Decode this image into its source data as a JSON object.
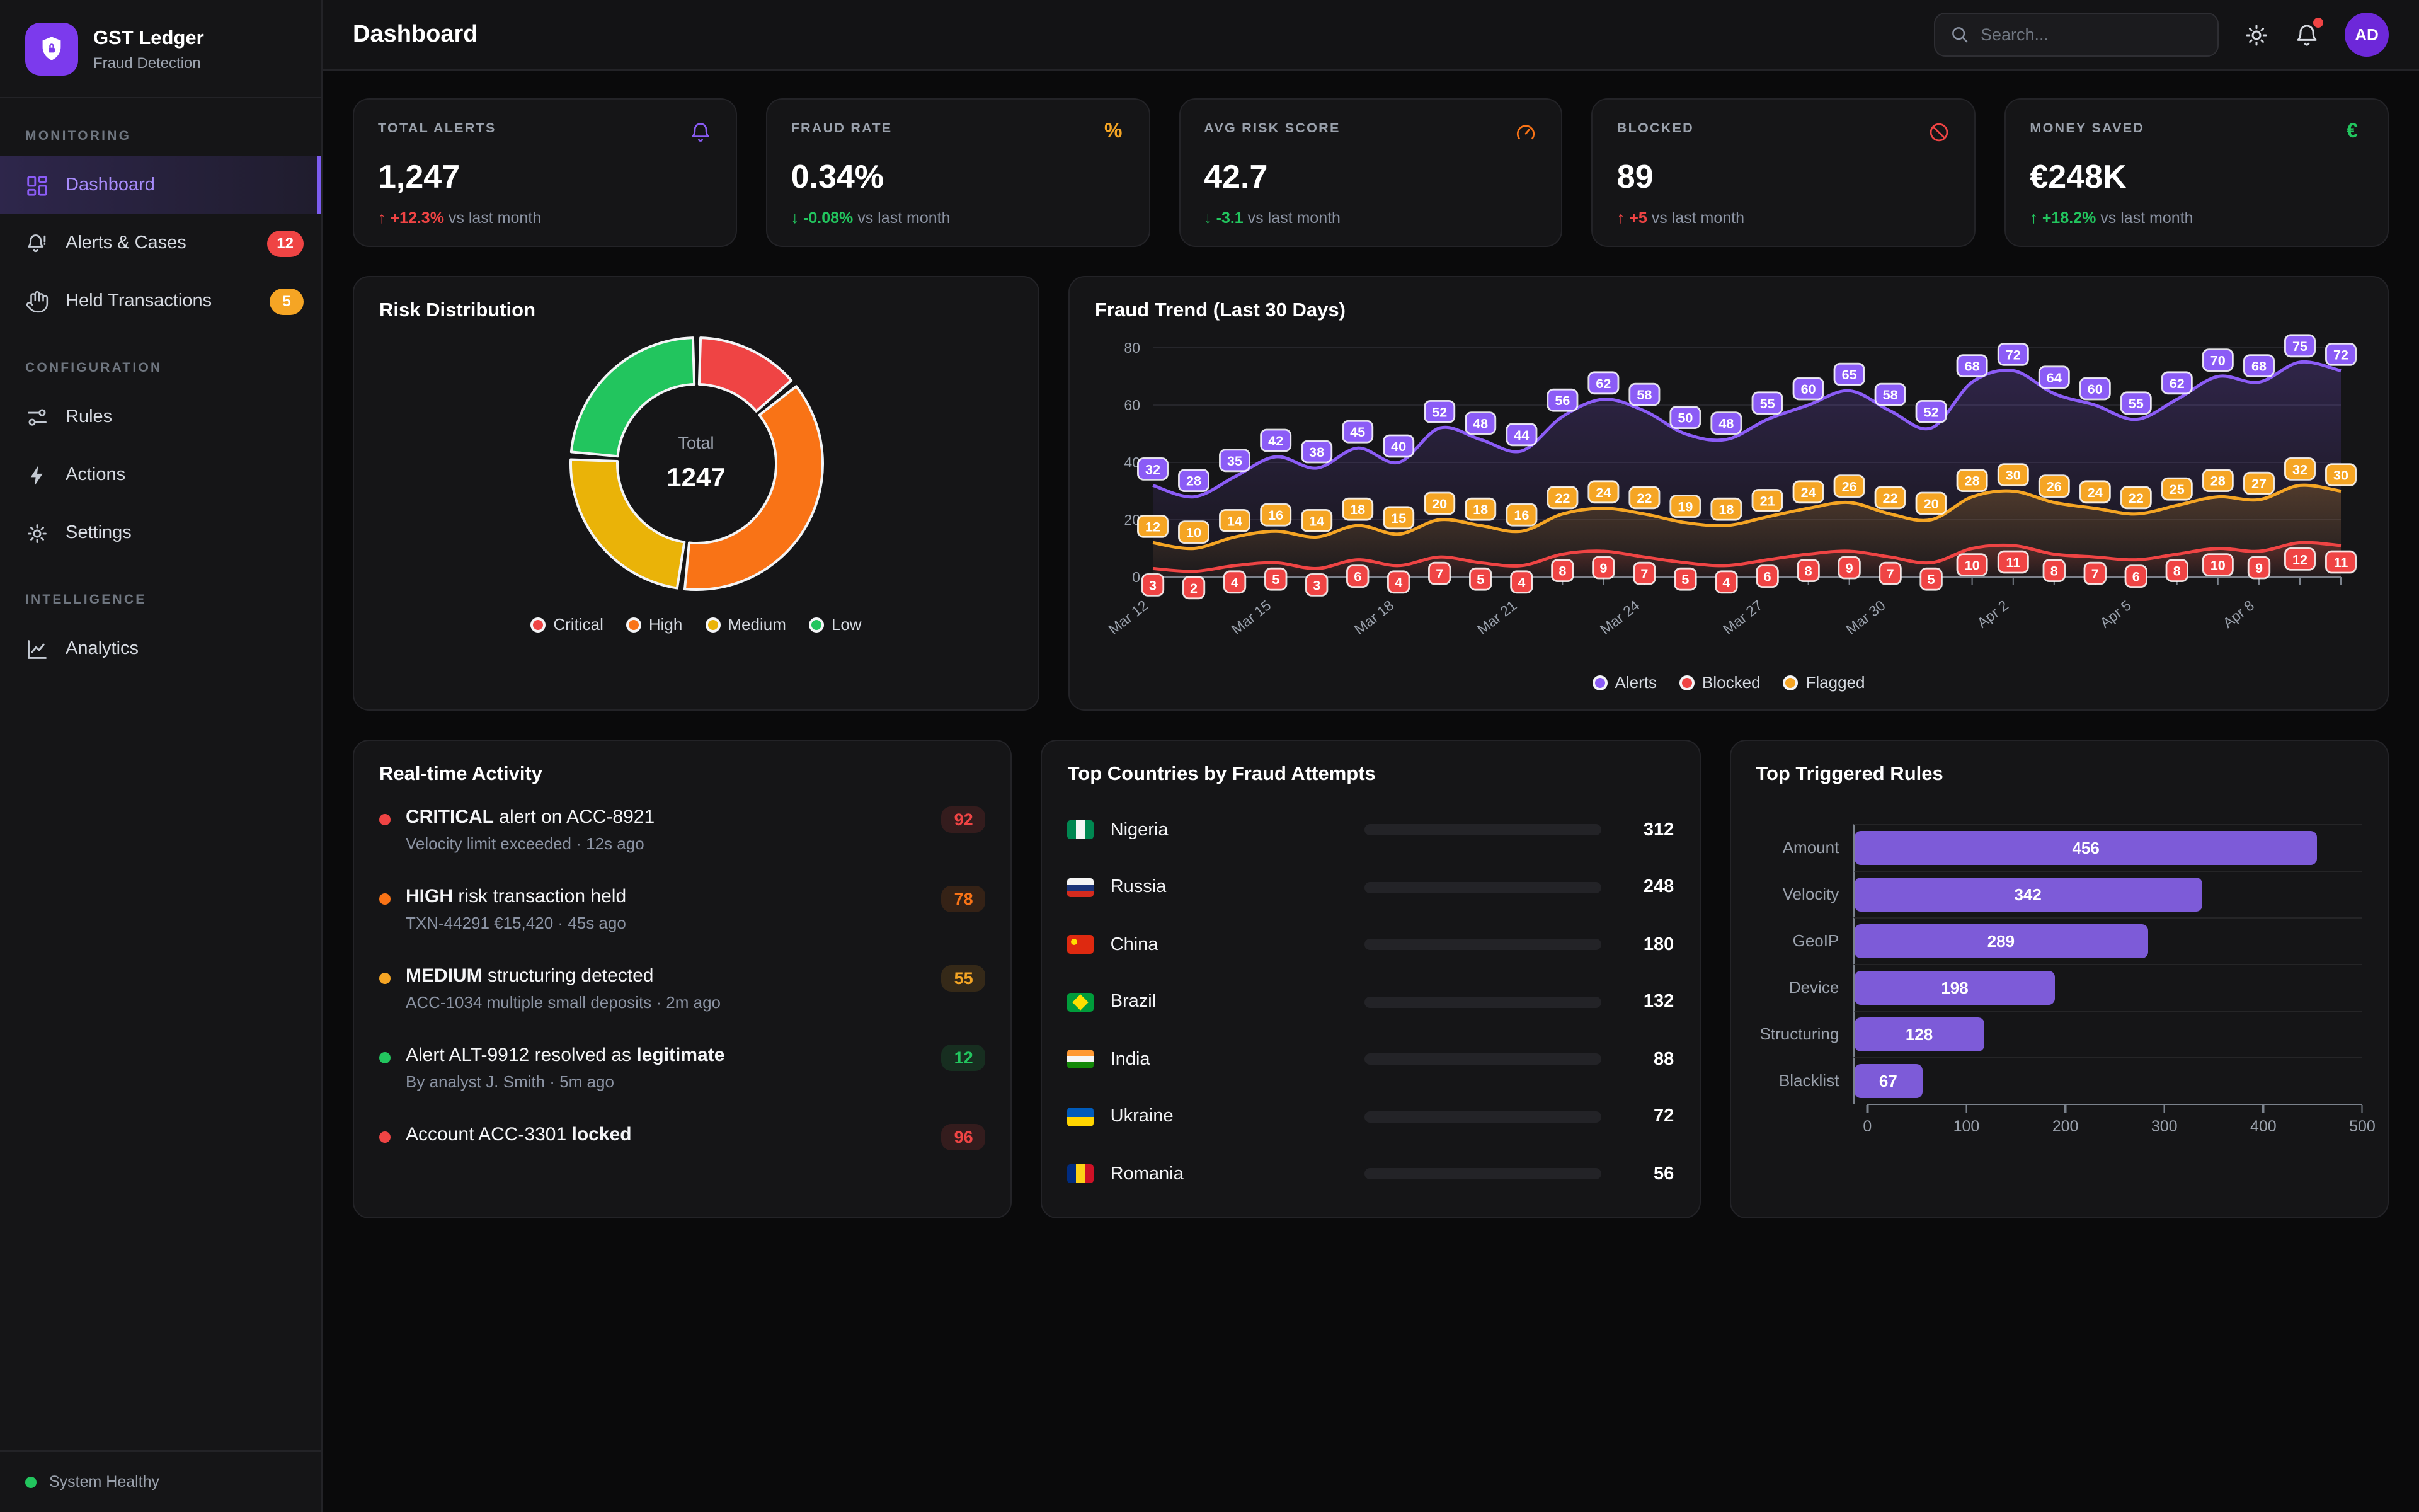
{
  "brand": {
    "name": "GST Ledger",
    "subtitle": "Fraud Detection"
  },
  "topbar": {
    "title": "Dashboard",
    "search_placeholder": "Search...",
    "avatar_initials": "AD"
  },
  "sidebar": {
    "sections": [
      {
        "label": "MONITORING",
        "items": [
          {
            "id": "dashboard",
            "label": "Dashboard",
            "icon": "dashboard-icon",
            "active": true
          },
          {
            "id": "alerts-cases",
            "label": "Alerts & Cases",
            "icon": "bell-alert-icon",
            "badge": "12",
            "badge_color": "#ef4444"
          },
          {
            "id": "held-transactions",
            "label": "Held Transactions",
            "icon": "hand-icon",
            "badge": "5",
            "badge_color": "#f5a524"
          }
        ]
      },
      {
        "label": "CONFIGURATION",
        "items": [
          {
            "id": "rules",
            "label": "Rules",
            "icon": "sliders-icon"
          },
          {
            "id": "actions",
            "label": "Actions",
            "icon": "bolt-icon"
          },
          {
            "id": "settings",
            "label": "Settings",
            "icon": "gear-icon"
          }
        ]
      },
      {
        "label": "INTELLIGENCE",
        "items": [
          {
            "id": "analytics",
            "label": "Analytics",
            "icon": "chart-line-icon"
          }
        ]
      }
    ],
    "footer_status": {
      "label": "System Healthy",
      "color": "#22c55e"
    }
  },
  "kpis": [
    {
      "label": "TOTAL ALERTS",
      "value": "1,247",
      "icon": "bell-icon",
      "icon_color": "#8b5cf6",
      "delta": "+12.3%",
      "delta_dir": "up",
      "delta_color": "#ef4444",
      "suffix": "vs last month"
    },
    {
      "label": "FRAUD RATE",
      "value": "0.34%",
      "icon": "percent-icon",
      "icon_color": "#f5a524",
      "delta": "-0.08%",
      "delta_dir": "down",
      "delta_color": "#22c55e",
      "suffix": "vs last month"
    },
    {
      "label": "AVG RISK SCORE",
      "value": "42.7",
      "icon": "gauge-icon",
      "icon_color": "#f97316",
      "delta": "-3.1",
      "delta_dir": "down",
      "delta_color": "#22c55e",
      "suffix": "vs last month"
    },
    {
      "label": "BLOCKED",
      "value": "89",
      "icon": "ban-icon",
      "icon_color": "#ef4444",
      "delta": "+5",
      "delta_dir": "up",
      "delta_color": "#ef4444",
      "suffix": "vs last month"
    },
    {
      "label": "MONEY SAVED",
      "value": "€248K",
      "icon": "euro-icon",
      "icon_color": "#22c55e",
      "delta": "+18.2%",
      "delta_dir": "up",
      "delta_color": "#22c55e",
      "suffix": "vs last month"
    }
  ],
  "chart_data": [
    {
      "type": "pie",
      "title": "Risk Distribution",
      "center_label": "Total",
      "total": 1247,
      "segments": [
        {
          "label": "Critical",
          "pct": 14,
          "color": "#ef4444"
        },
        {
          "label": "High",
          "pct": 38,
          "color": "#f97316"
        },
        {
          "label": "Medium",
          "pct": 24,
          "color": "#eab308"
        },
        {
          "label": "Low",
          "pct": 24,
          "color": "#22c55e"
        }
      ],
      "legend_position": "bottom"
    },
    {
      "type": "line",
      "title": "Fraud Trend (Last 30 Days)",
      "points": 30,
      "ylim": [
        0,
        80
      ],
      "yticks": [
        0,
        20,
        40,
        60,
        80
      ],
      "x_tick_labels": [
        "Mar 12",
        "Mar 15",
        "Mar 18",
        "Mar 21",
        "Mar 24",
        "Mar 27",
        "Mar 30",
        "Apr 2",
        "Apr 5",
        "Apr 8"
      ],
      "label_every": 3,
      "series": [
        {
          "name": "Alerts",
          "color": "#8b5cf6",
          "values": [
            32,
            28,
            35,
            42,
            38,
            45,
            40,
            52,
            48,
            44,
            56,
            62,
            58,
            50,
            48,
            55,
            60,
            65,
            58,
            52,
            68,
            72,
            64,
            60,
            55,
            62,
            70,
            68,
            75,
            72
          ]
        },
        {
          "name": "Blocked",
          "color": "#ef4444",
          "values": [
            3,
            2,
            4,
            5,
            3,
            6,
            4,
            7,
            5,
            4,
            8,
            9,
            7,
            5,
            4,
            6,
            8,
            9,
            7,
            5,
            10,
            11,
            8,
            7,
            6,
            8,
            10,
            9,
            12,
            11
          ]
        },
        {
          "name": "Flagged",
          "color": "#f5a524",
          "values": [
            12,
            10,
            14,
            16,
            14,
            18,
            15,
            20,
            18,
            16,
            22,
            24,
            22,
            19,
            18,
            21,
            24,
            26,
            22,
            20,
            28,
            30,
            26,
            24,
            22,
            25,
            28,
            27,
            32,
            30
          ]
        }
      ],
      "legend_position": "bottom",
      "grid": true
    },
    {
      "type": "bar",
      "orientation": "horizontal",
      "title": "Top Triggered Rules",
      "categories": [
        "Amount",
        "Velocity",
        "GeoIP",
        "Device",
        "Structuring",
        "Blacklist"
      ],
      "values": [
        456,
        342,
        289,
        198,
        128,
        67
      ],
      "bar_color": "#7d5bd8",
      "xlim": [
        0,
        500
      ],
      "xticks": [
        0,
        100,
        200,
        300,
        400,
        500
      ]
    }
  ],
  "activity": {
    "title": "Real-time Activity",
    "items": [
      {
        "severity_color": "#ef4444",
        "title_segments": [
          {
            "text": "CRITICAL",
            "bold": true
          },
          {
            "text": " alert on ACC-8921",
            "bold": false
          }
        ],
        "subtitle": "Velocity limit exceeded · 12s ago",
        "score": "92"
      },
      {
        "severity_color": "#f97316",
        "title_segments": [
          {
            "text": "HIGH",
            "bold": true
          },
          {
            "text": " risk transaction held",
            "bold": false
          }
        ],
        "subtitle": "TXN-44291 €15,420 · 45s ago",
        "score": "78"
      },
      {
        "severity_color": "#f5a524",
        "title_segments": [
          {
            "text": "MEDIUM",
            "bold": true
          },
          {
            "text": " structuring detected",
            "bold": false
          }
        ],
        "subtitle": "ACC-1034 multiple small deposits · 2m ago",
        "score": "55"
      },
      {
        "severity_color": "#22c55e",
        "title_segments": [
          {
            "text": "Alert ALT-9912 resolved as ",
            "bold": false
          },
          {
            "text": "legitimate",
            "bold": true
          }
        ],
        "subtitle": "By analyst J. Smith · 5m ago",
        "score": "12"
      },
      {
        "severity_color": "#ef4444",
        "title_segments": [
          {
            "text": "Account ACC-3301 ",
            "bold": false
          },
          {
            "text": "locked",
            "bold": true
          }
        ],
        "subtitle": "",
        "score": "96"
      }
    ]
  },
  "countries": {
    "title": "Top Countries by Fraud Attempts",
    "scale_max": 400,
    "items": [
      {
        "name": "Nigeria",
        "value": 312,
        "bar_color": "#ef4444",
        "flag": {
          "direction": "v",
          "stripes": [
            "#008751",
            "#f5f5f5",
            "#008751"
          ]
        }
      },
      {
        "name": "Russia",
        "value": 248,
        "bar_color": "#f97316",
        "flag": {
          "direction": "h",
          "stripes": [
            "#f5f5f5",
            "#1c3578",
            "#d52b1e"
          ]
        }
      },
      {
        "name": "China",
        "value": 180,
        "bar_color": "#f5a524",
        "flag": {
          "direction": "h",
          "stripes": [
            "#de2910"
          ],
          "emblem": "#ffde00",
          "emblem_pos": "tl"
        }
      },
      {
        "name": "Brazil",
        "value": 132,
        "bar_color": "#eab308",
        "flag": {
          "direction": "h",
          "stripes": [
            "#009c3b"
          ],
          "emblem": "#ffdf00",
          "emblem_pos": "center"
        }
      },
      {
        "name": "India",
        "value": 88,
        "bar_color": "#22c55e",
        "flag": {
          "direction": "h",
          "stripes": [
            "#ff9933",
            "#f5f5f5",
            "#138808"
          ]
        }
      },
      {
        "name": "Ukraine",
        "value": 72,
        "bar_color": "#22c55e",
        "flag": {
          "direction": "h",
          "stripes": [
            "#005bbb",
            "#ffd500"
          ]
        }
      },
      {
        "name": "Romania",
        "value": 56,
        "bar_color": "#22c55e",
        "flag": {
          "direction": "v",
          "stripes": [
            "#002b7f",
            "#fcd116",
            "#ce1126"
          ]
        }
      }
    ]
  }
}
